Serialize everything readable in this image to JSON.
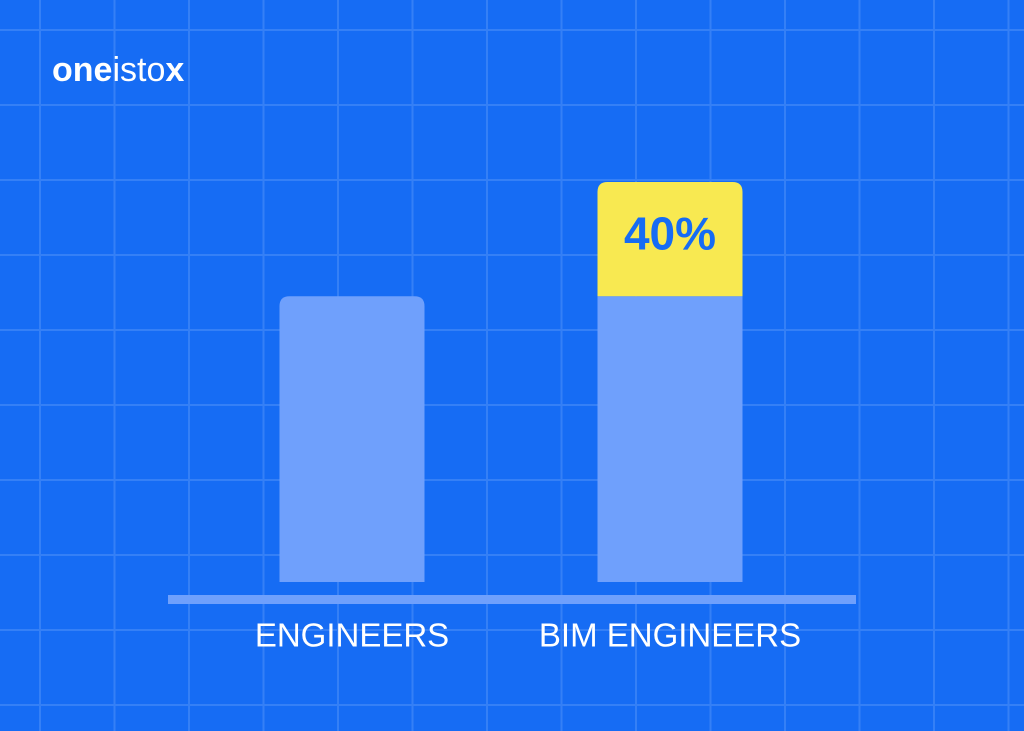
{
  "logo": {
    "parts": [
      "one",
      "isto",
      "x"
    ]
  },
  "chart_data": {
    "type": "stacked-bar",
    "categories": [
      "ENGINEERS",
      "BIM ENGINEERS"
    ],
    "series": [
      {
        "color": "#6fa0fc",
        "values": [
          100,
          100
        ]
      },
      {
        "color": "#f8e951",
        "values": [
          null,
          40
        ],
        "value_labels": [
          null,
          "40%"
        ]
      }
    ]
  }
}
